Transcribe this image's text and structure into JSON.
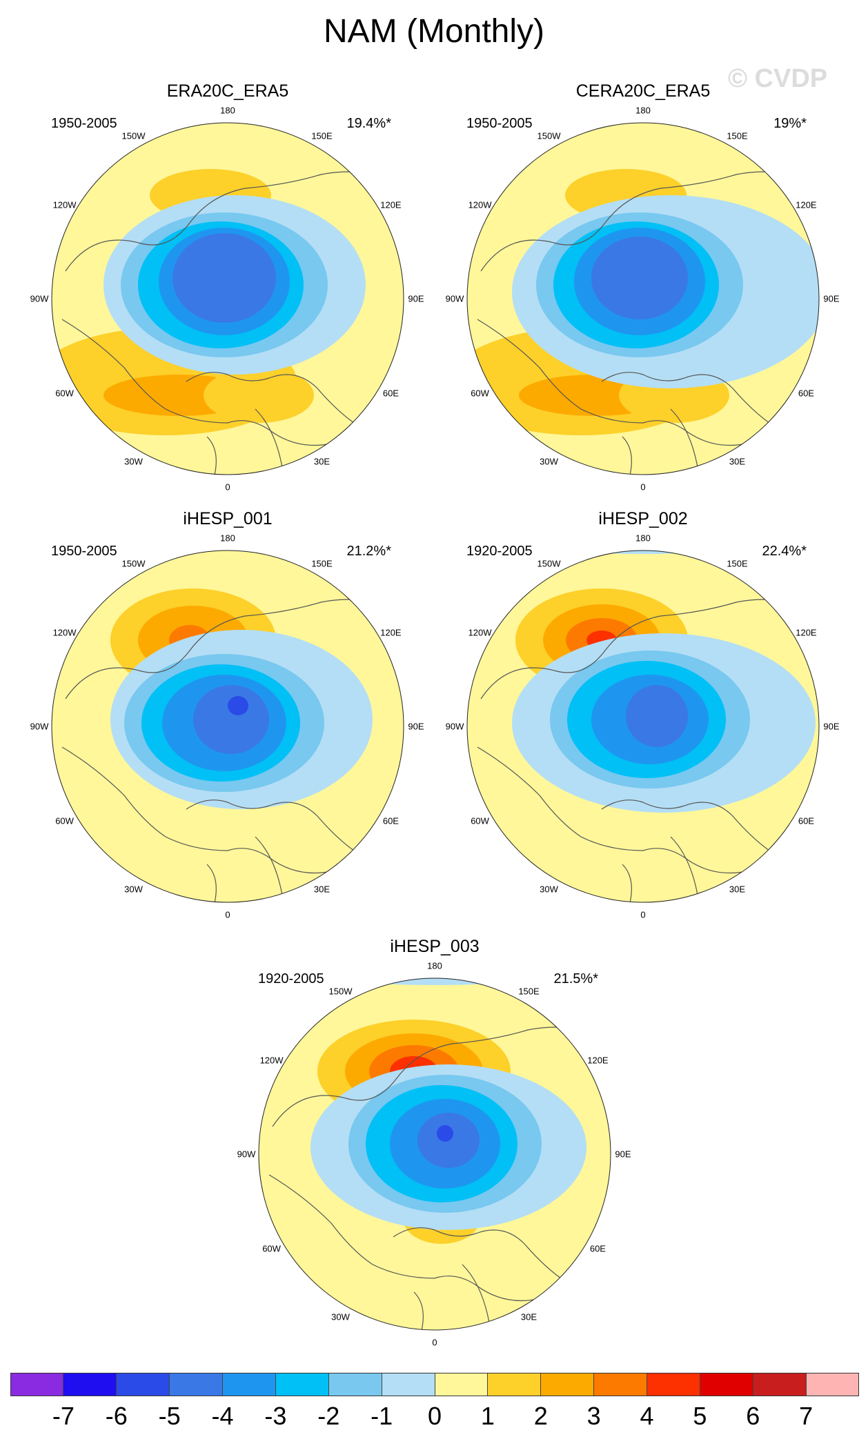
{
  "title": "NAM (Monthly)",
  "watermark": "© CVDP",
  "lon_labels": [
    "180",
    "150E",
    "120E",
    "90E",
    "60E",
    "30E",
    "0",
    "30W",
    "60W",
    "90W",
    "120W",
    "150W"
  ],
  "panels": [
    {
      "title": "ERA20C_ERA5",
      "period": "1950-2005",
      "variance": "19.4%*"
    },
    {
      "title": "CERA20C_ERA5",
      "period": "1950-2005",
      "variance": "19%*"
    },
    {
      "title": "iHESP_001",
      "period": "1950-2005",
      "variance": "21.2%*"
    },
    {
      "title": "iHESP_002",
      "period": "1920-2005",
      "variance": "22.4%*"
    },
    {
      "title": "iHESP_003",
      "period": "1920-2005",
      "variance": "21.5%*"
    }
  ],
  "colorbar": {
    "ticks": [
      "-7",
      "-6",
      "-5",
      "-4",
      "-3",
      "-2",
      "-1",
      "0",
      "1",
      "2",
      "3",
      "4",
      "5",
      "6",
      "7"
    ],
    "colors": [
      "#8a2be2",
      "#1e0ef0",
      "#2a4be8",
      "#3a78e6",
      "#1e96f0",
      "#00c0f5",
      "#78c8f0",
      "#b4def5",
      "#fff79a",
      "#fdd02a",
      "#fdaa00",
      "#fd7a00",
      "#fd3000",
      "#e00000",
      "#c81e1e",
      "#ffb4b4"
    ]
  },
  "fills": {
    "background": "#fff79a",
    "neg1": "#b4def5",
    "neg2": "#78c8f0",
    "neg3": "#00c0f5",
    "neg4": "#1e96f0",
    "neg5": "#3a78e6",
    "neg6": "#2a4be8",
    "pos1": "#fdd02a",
    "pos2": "#fdaa00",
    "pos3": "#fd7a00",
    "pos4": "#fd3000"
  }
}
